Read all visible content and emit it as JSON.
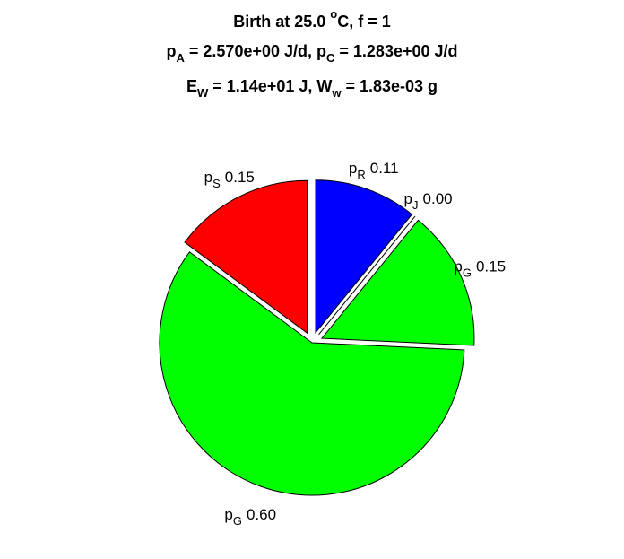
{
  "chart_data": {
    "type": "pie",
    "title_lines": [
      [
        {
          "text": "Birth at 25.0 "
        },
        {
          "text": "o",
          "shift": "super"
        },
        {
          "text": "C, f = 1"
        }
      ],
      [
        {
          "text": "p"
        },
        {
          "text": "A",
          "shift": "sub"
        },
        {
          "text": " = 2.570e+00 J/d, p"
        },
        {
          "text": "C",
          "shift": "sub"
        },
        {
          "text": " = 1.283e+00 J/d"
        }
      ],
      [
        {
          "text": "E"
        },
        {
          "text": "W",
          "shift": "sub"
        },
        {
          "text": " = 1.14e+01 J, W"
        },
        {
          "text": "w",
          "shift": "sub"
        },
        {
          "text": " = 1.83e-03 g"
        }
      ]
    ],
    "categories": [
      {
        "symbol": "p",
        "subscript": "R"
      },
      {
        "symbol": "p",
        "subscript": "J"
      },
      {
        "symbol": "p",
        "subscript": "G"
      },
      {
        "symbol": "p",
        "subscript": "G"
      },
      {
        "symbol": "p",
        "subscript": "S"
      }
    ],
    "values": [
      0.11,
      0.0,
      0.15,
      0.6,
      0.15
    ],
    "value_labels": [
      "0.11",
      "0.00",
      "0.15",
      "0.60",
      "0.15"
    ],
    "colors": [
      "#0000ff",
      "#800080",
      "#00ff00",
      "#00ff00",
      "#ff0000"
    ],
    "explode": [
      true,
      true,
      true,
      false,
      true
    ],
    "direction": "clockwise"
  }
}
